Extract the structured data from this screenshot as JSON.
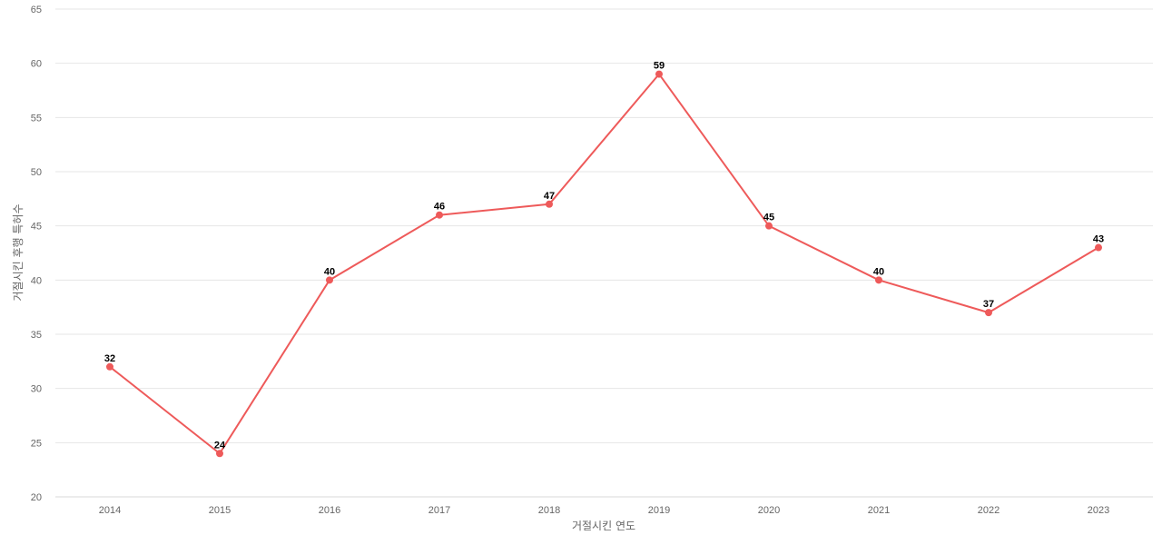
{
  "chart_data": {
    "type": "line",
    "title": "",
    "xlabel": "거절시킨 연도",
    "ylabel": "거절시킨 후행 특허수",
    "categories": [
      "2014",
      "2015",
      "2016",
      "2017",
      "2018",
      "2019",
      "2020",
      "2021",
      "2022",
      "2023"
    ],
    "series": [
      {
        "values": [
          32,
          24,
          40,
          46,
          47,
          59,
          45,
          40,
          37,
          43
        ]
      }
    ],
    "ylim": [
      20,
      65
    ],
    "yticks": [
      20,
      25,
      30,
      35,
      40,
      45,
      50,
      55,
      60,
      65
    ],
    "grid": true,
    "legend": "none",
    "data_labels": true,
    "line_color": "#ee5a5a",
    "marker_color": "#ee5a5a"
  }
}
